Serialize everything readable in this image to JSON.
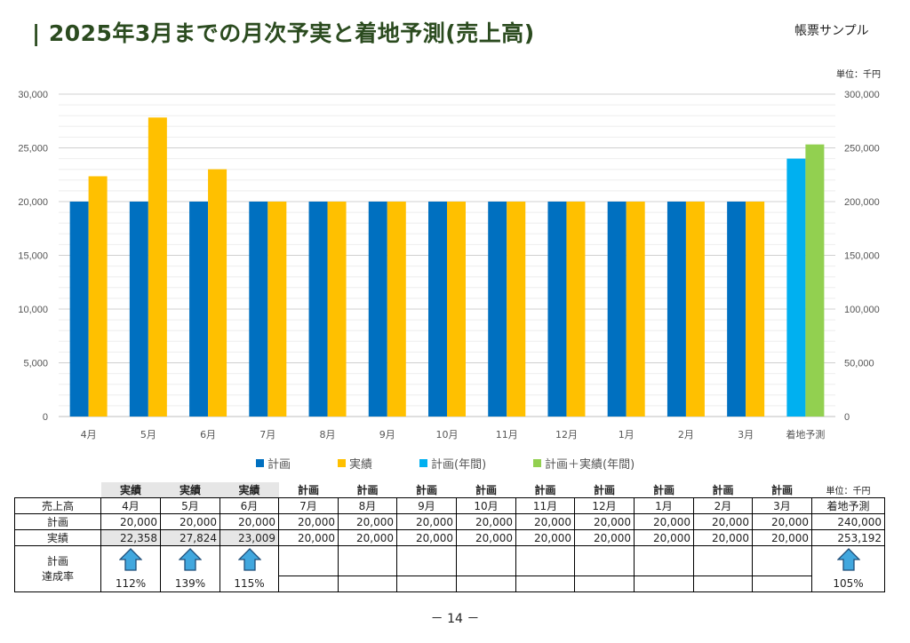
{
  "header": {
    "title": "| 2025年3月までの月次予実と着地予測(売上高)",
    "sample_label": "帳票サンプル",
    "unit_chart": "単位：千円",
    "unit_table": "単位：千円"
  },
  "chart_data": {
    "type": "bar",
    "categories": [
      "4月",
      "5月",
      "6月",
      "7月",
      "8月",
      "9月",
      "10月",
      "11月",
      "12月",
      "1月",
      "2月",
      "3月",
      "着地予測"
    ],
    "series": [
      {
        "name": "計画",
        "axis": "left",
        "color": "#0070c0",
        "values": [
          20000,
          20000,
          20000,
          20000,
          20000,
          20000,
          20000,
          20000,
          20000,
          20000,
          20000,
          20000,
          null
        ]
      },
      {
        "name": "実績",
        "axis": "left",
        "color": "#ffc000",
        "values": [
          22358,
          27824,
          23009,
          20000,
          20000,
          20000,
          20000,
          20000,
          20000,
          20000,
          20000,
          20000,
          null
        ]
      },
      {
        "name": "計画(年間)",
        "axis": "right",
        "color": "#00b0f0",
        "values": [
          null,
          null,
          null,
          null,
          null,
          null,
          null,
          null,
          null,
          null,
          null,
          null,
          240000
        ]
      },
      {
        "name": "計画＋実績(年間)",
        "axis": "right",
        "color": "#92d050",
        "values": [
          null,
          null,
          null,
          null,
          null,
          null,
          null,
          null,
          null,
          null,
          null,
          null,
          253192
        ]
      }
    ],
    "ylim_left": [
      0,
      30000
    ],
    "ylim_right": [
      0,
      300000
    ],
    "yticks_left": [
      "0",
      "5,000",
      "10,000",
      "15,000",
      "20,000",
      "25,000",
      "30,000"
    ],
    "yticks_right": [
      "0",
      "50,000",
      "100,000",
      "150,000",
      "200,000",
      "250,000",
      "300,000"
    ],
    "grid": true,
    "legend_position": "bottom"
  },
  "table": {
    "status_row": [
      "実績",
      "実績",
      "実績",
      "計画",
      "計画",
      "計画",
      "計画",
      "計画",
      "計画",
      "計画",
      "計画",
      "計画"
    ],
    "row_header_label": "売上高",
    "columns": [
      "4月",
      "5月",
      "6月",
      "7月",
      "8月",
      "9月",
      "10月",
      "11月",
      "12月",
      "1月",
      "2月",
      "3月",
      "着地予測"
    ],
    "plan_label": "計画",
    "plan_values": [
      "20,000",
      "20,000",
      "20,000",
      "20,000",
      "20,000",
      "20,000",
      "20,000",
      "20,000",
      "20,000",
      "20,000",
      "20,000",
      "20,000",
      "240,000"
    ],
    "actual_label": "実績",
    "actual_values": [
      "22,358",
      "27,824",
      "23,009",
      "20,000",
      "20,000",
      "20,000",
      "20,000",
      "20,000",
      "20,000",
      "20,000",
      "20,000",
      "20,000",
      "253,192"
    ],
    "rate_label_1": "計画",
    "rate_label_2": "達成率",
    "rate_values": [
      "112%",
      "139%",
      "115%",
      "",
      "",
      "",
      "",
      "",
      "",
      "",
      "",
      "",
      "105%"
    ],
    "arrow_icon": "up-arrow-icon"
  },
  "page_number": "－ 14 －",
  "colors": {
    "plan": "#0070c0",
    "actual": "#ffc000",
    "plan_year": "#00b0f0",
    "total_year": "#92d050",
    "title": "#2b4b1f"
  }
}
